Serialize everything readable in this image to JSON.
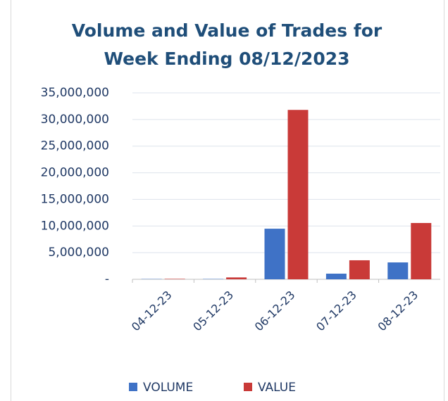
{
  "chart_data": {
    "type": "bar",
    "title": [
      "Volume and Value of Trades for",
      "Week Ending 08/12/2023"
    ],
    "categories": [
      "04-12-23",
      "05-12-23",
      "06-12-23",
      "07-12-23",
      "08-12-23"
    ],
    "series": [
      {
        "name": "VOLUME",
        "color": "#3f72c6",
        "values": [
          50000,
          60000,
          9500000,
          1060000,
          3170000
        ]
      },
      {
        "name": "VALUE",
        "color": "#c93a38",
        "values": [
          80000,
          350000,
          31800000,
          3570000,
          10570000
        ]
      }
    ],
    "ylim": [
      0,
      35000000
    ],
    "yticks": [
      {
        "value": 0,
        "label": "-"
      },
      {
        "value": 5000000,
        "label": "5,000,000"
      },
      {
        "value": 10000000,
        "label": "10,000,000"
      },
      {
        "value": 15000000,
        "label": "15,000,000"
      },
      {
        "value": 20000000,
        "label": "20,000,000"
      },
      {
        "value": 25000000,
        "label": "25,000,000"
      },
      {
        "value": 30000000,
        "label": "30,000,000"
      },
      {
        "value": 35000000,
        "label": "35,000,000"
      }
    ],
    "grid": true,
    "legend": "bottom"
  }
}
